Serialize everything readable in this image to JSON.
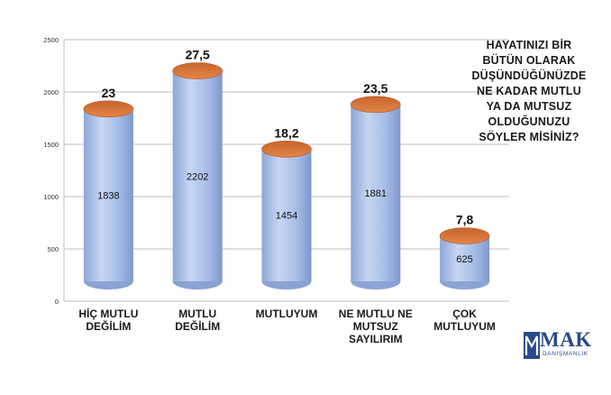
{
  "chart_data": {
    "type": "bar",
    "subtype": "3d-cylinder",
    "categories": [
      [
        "HİÇ MUTLU",
        "DEĞİLİM"
      ],
      [
        "MUTLU",
        "DEĞİLİM"
      ],
      [
        "MUTLUYUM"
      ],
      [
        "NE MUTLU NE",
        "MUTSUZ",
        "SAYILIRIM"
      ],
      [
        "ÇOK",
        "MUTLUYUM"
      ]
    ],
    "values": [
      1838,
      2202,
      1454,
      1881,
      625
    ],
    "top_labels": [
      "23",
      "27,5",
      "18,2",
      "23,5",
      "7,8"
    ],
    "value_labels": [
      "1838",
      "2202",
      "1454",
      "1881",
      "625"
    ],
    "ylim": [
      0,
      2500
    ],
    "yticks": [
      "0",
      "500",
      "1000",
      "1500",
      "2000",
      "2500"
    ],
    "grid": true,
    "colors": {
      "body": "#a9bfe6",
      "cap": "#d8743a",
      "grid": "#bdbdbd"
    }
  },
  "question": {
    "lines": [
      "HAYATINIZI BİR",
      "BÜTÜN OLARAK",
      "DÜŞÜNDÜĞÜNÜZDE",
      "NE KADAR MUTLU",
      "YA DA MUTSUZ",
      "OLDUĞUNUZU",
      "SÖYLER MİSİNİZ?"
    ]
  },
  "logo": {
    "name": "MAK",
    "sub": "DANIŞMANLIK"
  }
}
